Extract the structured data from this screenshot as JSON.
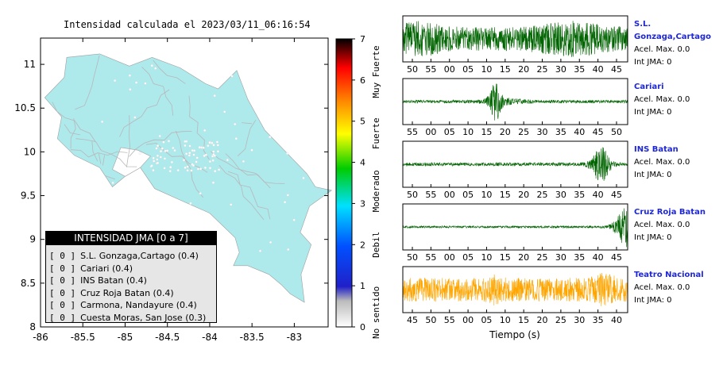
{
  "map": {
    "title": "Intensidad calculada el 2023/03/11_06:16:54",
    "x_ticks": [
      "-86",
      "-85.5",
      "-85",
      "-84.5",
      "-84",
      "-83.5",
      "-83"
    ],
    "y_ticks": [
      "11",
      "10.5",
      "10",
      "9.5",
      "9",
      "8.5",
      "8"
    ],
    "colors": {
      "land": "#aee9ec",
      "roads": "#b8b8b8",
      "sea": "#ffffff"
    }
  },
  "colorbar": {
    "ticks": [
      "0",
      "1",
      "2",
      "3",
      "4",
      "5",
      "6",
      "7"
    ],
    "labels": [
      "No sentido",
      "Debil",
      "Moderado",
      "Fuerte",
      "Muy Fuerte"
    ]
  },
  "legend": {
    "title": "INTENSIDAD JMA [0 a 7]",
    "items": [
      {
        "level": "[ 0 ]",
        "name": "S.L. Gonzaga,Cartago (0.4)"
      },
      {
        "level": "[ 0 ]",
        "name": "Cariari (0.4)"
      },
      {
        "level": "[ 0 ]",
        "name": "INS Batan (0.4)"
      },
      {
        "level": "[ 0 ]",
        "name": "Cruz Roja Batan (0.4)"
      },
      {
        "level": "[ 0 ]",
        "name": "Carmona, Nandayure (0.4)"
      },
      {
        "level": "[ 0 ]",
        "name": "Cuesta Moras, San Jose (0.3)"
      }
    ]
  },
  "waveforms": {
    "xlabel": "Tiempo (s)",
    "panels": [
      {
        "station": "S.L. Gonzaga,Cartago",
        "acel": "Acel. Max. 0.0",
        "int": "Int JMA: 0",
        "color": "#006400",
        "ticks": [
          "50",
          "55",
          "00",
          "05",
          "10",
          "15",
          "20",
          "25",
          "30",
          "35",
          "40",
          "45"
        ]
      },
      {
        "station": "Cariari",
        "acel": "Acel. Max. 0.0",
        "int": "Int JMA: 0",
        "color": "#006400",
        "ticks": [
          "55",
          "00",
          "05",
          "10",
          "15",
          "20",
          "25",
          "30",
          "35",
          "40",
          "45",
          "50"
        ]
      },
      {
        "station": "INS Batan",
        "acel": "Acel. Max. 0.0",
        "int": "Int JMA: 0",
        "color": "#006400",
        "ticks": [
          "50",
          "55",
          "00",
          "05",
          "10",
          "15",
          "20",
          "25",
          "30",
          "35",
          "40",
          "45"
        ]
      },
      {
        "station": "Cruz Roja Batan",
        "acel": "Acel. Max. 0.0",
        "int": "Int JMA: 0",
        "color": "#006400",
        "ticks": [
          "50",
          "55",
          "00",
          "05",
          "10",
          "15",
          "20",
          "25",
          "30",
          "35",
          "40",
          "45"
        ]
      },
      {
        "station": "Teatro Nacional",
        "acel": "Acel. Max. 0.0",
        "int": "Int JMA: 0",
        "color": "#ffa500",
        "ticks": [
          "45",
          "50",
          "55",
          "00",
          "05",
          "10",
          "15",
          "20",
          "25",
          "30",
          "35",
          "40"
        ]
      }
    ]
  },
  "chart_data": [
    {
      "type": "scatter",
      "title": "Intensidad calculada el 2023/03/11_06:16:54",
      "xlim": [
        -86,
        -82.6
      ],
      "ylim": [
        8,
        11.3
      ],
      "x_ticks": [
        -86,
        -85.5,
        -85,
        -84.5,
        -84,
        -83.5,
        -83
      ],
      "y_ticks": [
        11,
        10.5,
        10,
        9.5,
        9,
        8.5,
        8
      ],
      "colorbar": {
        "range": [
          0,
          7
        ],
        "labels": [
          "No sentido",
          "Debil",
          "Moderado",
          "Fuerte",
          "Muy Fuerte"
        ]
      }
    },
    {
      "type": "line",
      "xlabel": "Tiempo (s)",
      "series": [
        {
          "name": "S.L. Gonzaga,Cartago",
          "acel_max": 0.0,
          "int_jma": 0
        },
        {
          "name": "Cariari",
          "acel_max": 0.0,
          "int_jma": 0
        },
        {
          "name": "INS Batan",
          "acel_max": 0.0,
          "int_jma": 0
        },
        {
          "name": "Cruz Roja Batan",
          "acel_max": 0.0,
          "int_jma": 0
        },
        {
          "name": "Teatro Nacional",
          "acel_max": 0.0,
          "int_jma": 0
        }
      ]
    }
  ]
}
